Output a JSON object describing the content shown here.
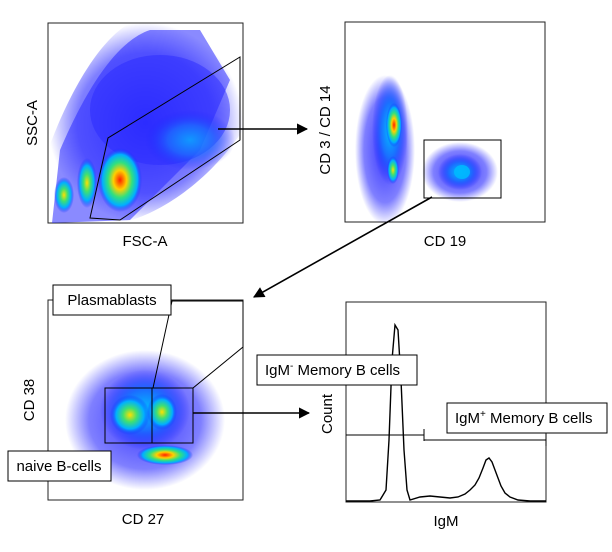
{
  "panels": {
    "scatter1": {
      "x_label": "FSC-A",
      "y_label": "SSC-A"
    },
    "scatter2": {
      "x_label": "CD 19",
      "y_label": "CD 3 / CD 14"
    },
    "scatter3": {
      "x_label": "CD 27",
      "y_label": "CD 38"
    },
    "histogram": {
      "x_label": "IgM",
      "y_label": "Count"
    }
  },
  "populations": {
    "plasmablasts": "Plasmablasts",
    "naive_b_cells": "naive B-cells",
    "igm_neg_memory": {
      "prefix": "IgM",
      "sup": "-",
      "rest": " Memory B cells"
    },
    "igm_pos_memory": {
      "prefix": "IgM",
      "sup": "+",
      "rest": " Memory B cells"
    }
  },
  "colors": {
    "density_low": "#1a1aff",
    "density_mid": "#00d0ff",
    "density_high": "#ffe000",
    "density_peak": "#ff2000"
  }
}
